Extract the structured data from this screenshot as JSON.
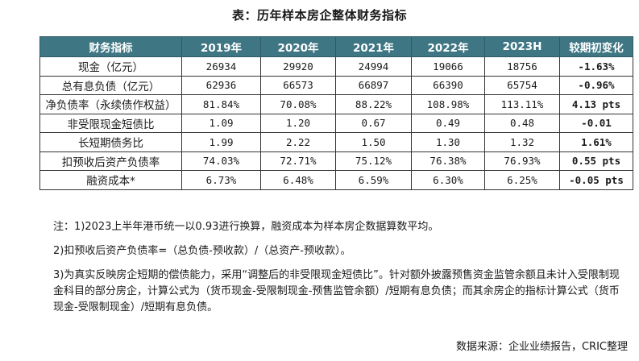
{
  "title": "表：历年样本房企整体财务指标",
  "table": {
    "headers": [
      "财务指标",
      "2019年",
      "2020年",
      "2021年",
      "2022年",
      "2023H",
      "较期初变化"
    ],
    "rows": [
      [
        "现金（亿元）",
        "26934",
        "29920",
        "24994",
        "19066",
        "18756",
        "-1.63%"
      ],
      [
        "总有息负债（亿元）",
        "62936",
        "66573",
        "66897",
        "66390",
        "65754",
        "-0.96%"
      ],
      [
        "净负债率（永续债作权益）",
        "81.84%",
        "70.08%",
        "88.22%",
        "108.98%",
        "113.11%",
        "4.13 pts"
      ],
      [
        "非受限现金短债比",
        "1.09",
        "1.20",
        "0.67",
        "0.49",
        "0.48",
        "-0.01"
      ],
      [
        "长短期债务比",
        "1.99",
        "2.22",
        "1.50",
        "1.30",
        "1.32",
        "1.61%"
      ],
      [
        "扣预收后资产负债率",
        "74.03%",
        "72.71%",
        "75.12%",
        "76.38%",
        "76.93%",
        "0.55 pts"
      ],
      [
        "融资成本*",
        "6.73%",
        "6.48%",
        "6.59%",
        "6.30%",
        "6.25%",
        "-0.05 pts"
      ]
    ]
  },
  "notes": {
    "note1": "注：1)2023上半年港币统一以0.93进行换算，融资成本为样本房企数据算数平均。",
    "note2": "2)扣预收后资产负债率=（总负债-预收款）/（总资产-预收款）。",
    "note3": "3)为真实反映房企短期的偿债能力，采用“调整后的非受限现金短债比”。针对额外披露预售资金监管余额且未计入受限制现金科目的部分房企，计算公式为（货币现金-受限制现金-预售监管余额）/短期有息负债；而其余房企的指标计算公式（货币现金-受限制现金）/短期有息负债。"
  },
  "source": "数据来源：企业业绩报告，CRIC整理"
}
